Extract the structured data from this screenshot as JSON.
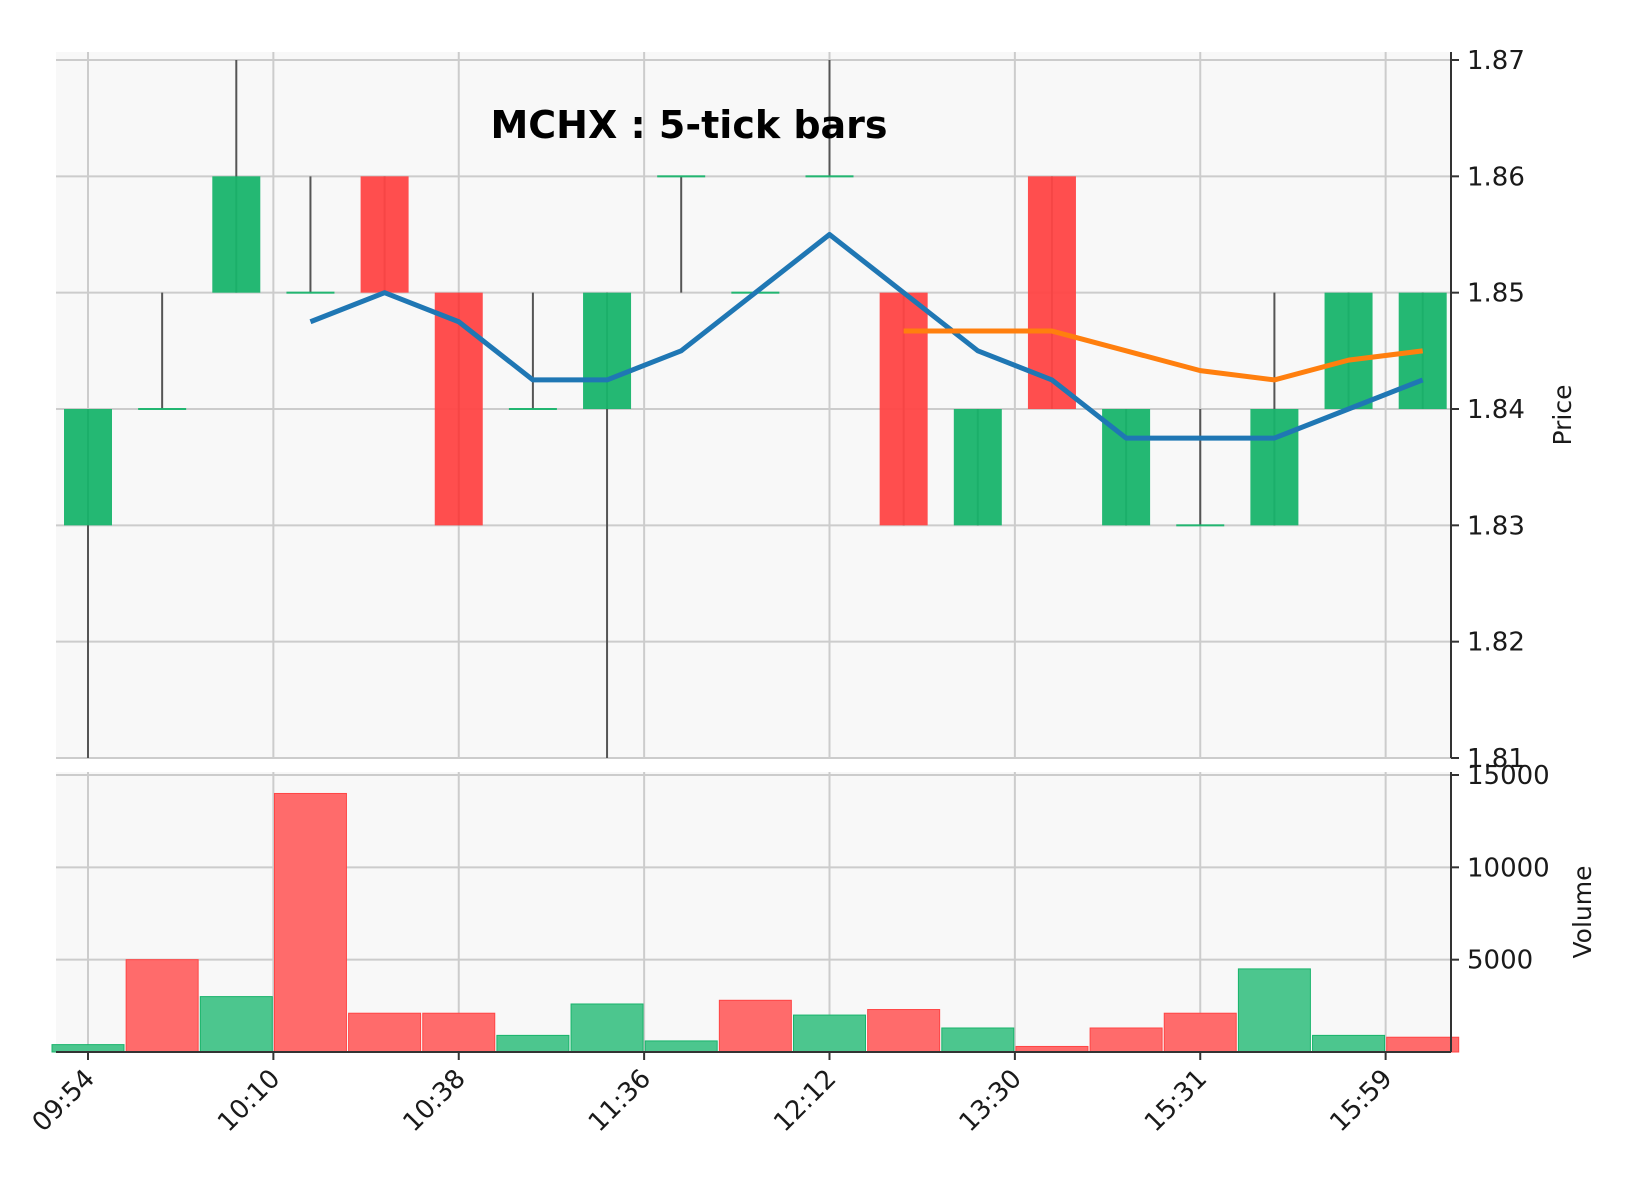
{
  "chart_data": {
    "type": "candlestick",
    "title": "MCHX : 5-tick bars",
    "x_tick_labels": [
      "09:54",
      "10:10",
      "10:38",
      "11:36",
      "12:12",
      "13:30",
      "15:31",
      "15:59"
    ],
    "price_panel": {
      "ylabel": "Price",
      "ylim": [
        1.81,
        1.87
      ],
      "yticks": [
        "1.81",
        "1.82",
        "1.83",
        "1.84",
        "1.85",
        "1.86",
        "1.87"
      ],
      "candles": [
        {
          "open": 1.83,
          "high": 1.84,
          "low": 1.81,
          "close": 1.84
        },
        {
          "open": 1.84,
          "high": 1.85,
          "low": 1.84,
          "close": 1.84
        },
        {
          "open": 1.85,
          "high": 1.87,
          "low": 1.85,
          "close": 1.86
        },
        {
          "open": 1.85,
          "high": 1.86,
          "low": 1.85,
          "close": 1.85
        },
        {
          "open": 1.86,
          "high": 1.86,
          "low": 1.85,
          "close": 1.85
        },
        {
          "open": 1.85,
          "high": 1.85,
          "low": 1.83,
          "close": 1.83
        },
        {
          "open": 1.84,
          "high": 1.85,
          "low": 1.84,
          "close": 1.84
        },
        {
          "open": 1.84,
          "high": 1.85,
          "low": 1.81,
          "close": 1.85
        },
        {
          "open": 1.86,
          "high": 1.86,
          "low": 1.85,
          "close": 1.86
        },
        {
          "open": 1.85,
          "high": 1.85,
          "low": 1.85,
          "close": 1.85
        },
        {
          "open": 1.86,
          "high": 1.87,
          "low": 1.86,
          "close": 1.86
        },
        {
          "open": 1.85,
          "high": 1.85,
          "low": 1.83,
          "close": 1.83
        },
        {
          "open": 1.83,
          "high": 1.84,
          "low": 1.83,
          "close": 1.84
        },
        {
          "open": 1.86,
          "high": 1.86,
          "low": 1.84,
          "close": 1.84
        },
        {
          "open": 1.83,
          "high": 1.84,
          "low": 1.83,
          "close": 1.84
        },
        {
          "open": 1.83,
          "high": 1.84,
          "low": 1.83,
          "close": 1.83
        },
        {
          "open": 1.83,
          "high": 1.85,
          "low": 1.83,
          "close": 1.84
        },
        {
          "open": 1.84,
          "high": 1.85,
          "low": 1.84,
          "close": 1.85
        },
        {
          "open": 1.84,
          "high": 1.85,
          "low": 1.84,
          "close": 1.85
        }
      ],
      "moving_averages": [
        {
          "color": "#1f77b4",
          "values": [
            null,
            null,
            null,
            1.8475,
            1.85,
            1.8475,
            1.8425,
            1.8425,
            1.845,
            1.85,
            1.855,
            1.85,
            1.845,
            1.8425,
            1.8375,
            1.8375,
            1.8375,
            1.84,
            1.8425
          ]
        },
        {
          "color": "#ff7f0e",
          "values": [
            null,
            null,
            null,
            null,
            null,
            null,
            null,
            null,
            null,
            null,
            null,
            1.8467,
            1.8467,
            1.8467,
            1.845,
            1.8433,
            1.8425,
            1.8442,
            1.845
          ]
        }
      ]
    },
    "volume_panel": {
      "ylabel": "Volume",
      "yticks": [
        "5000",
        "10000",
        "15000"
      ],
      "ylim": [
        0,
        15000
      ],
      "values": [
        400,
        5000,
        3000,
        14000,
        2100,
        2100,
        900,
        2600,
        600,
        2800,
        2000,
        2300,
        1300,
        300,
        1300,
        2100,
        4500,
        900,
        800
      ],
      "up": [
        true,
        false,
        true,
        false,
        false,
        false,
        true,
        true,
        true,
        false,
        true,
        false,
        true,
        false,
        false,
        false,
        true,
        true,
        false
      ]
    },
    "colors": {
      "up": "#18b46b",
      "down": "#ff4545",
      "volume_up": "#4cc68e",
      "volume_down": "#ff6b6b",
      "grid": "#cccccc",
      "panel_bg": "#f8f8f8",
      "wick": "#555555"
    },
    "grid": true
  }
}
